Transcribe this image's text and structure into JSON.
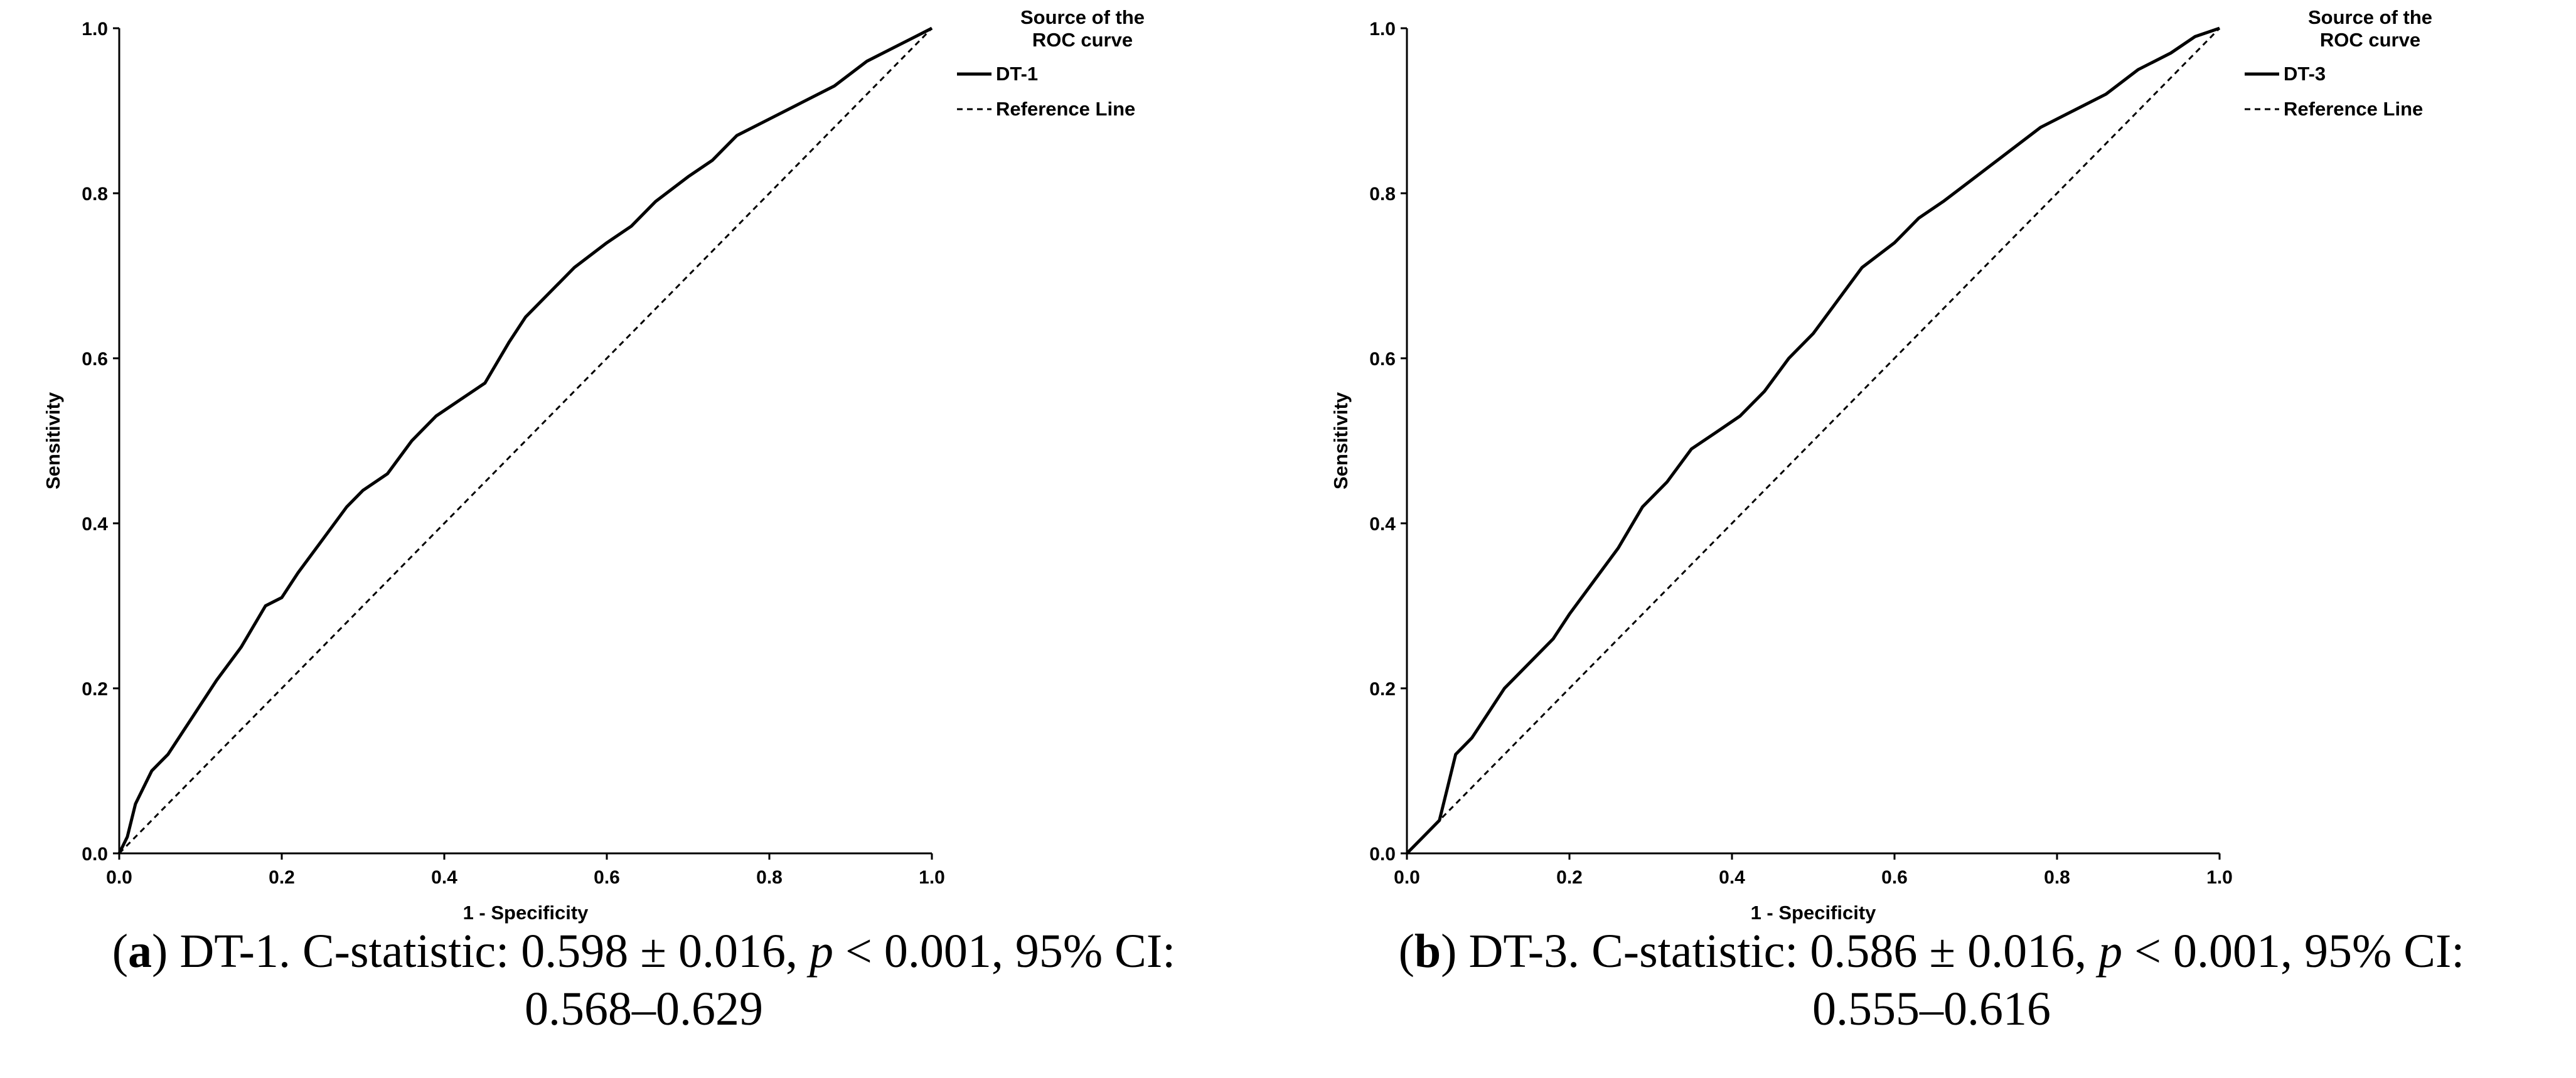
{
  "chart_data": [
    {
      "type": "line",
      "panel": "a",
      "title": "",
      "xlabel": "1 - Specificity",
      "ylabel": "Sensitivity",
      "xlim": [
        0,
        1
      ],
      "ylim": [
        0,
        1
      ],
      "xticks": [
        "0.0",
        "0.2",
        "0.4",
        "0.6",
        "0.8",
        "1.0"
      ],
      "yticks": [
        "0.0",
        "0.2",
        "0.4",
        "0.6",
        "0.8",
        "1.0"
      ],
      "grid": false,
      "legend": {
        "title_line1": "Source of the",
        "title_line2": "ROC curve",
        "placement": "top-right",
        "entries": [
          {
            "name": "DT-1",
            "style": "solid"
          },
          {
            "name": "Reference Line",
            "style": "dashed"
          }
        ]
      },
      "series": [
        {
          "name": "DT-1",
          "style": "solid",
          "points": [
            [
              0,
              0
            ],
            [
              0.01,
              0.02
            ],
            [
              0.02,
              0.06
            ],
            [
              0.04,
              0.1
            ],
            [
              0.06,
              0.12
            ],
            [
              0.08,
              0.15
            ],
            [
              0.1,
              0.18
            ],
            [
              0.12,
              0.21
            ],
            [
              0.15,
              0.25
            ],
            [
              0.18,
              0.3
            ],
            [
              0.2,
              0.31
            ],
            [
              0.22,
              0.34
            ],
            [
              0.25,
              0.38
            ],
            [
              0.28,
              0.42
            ],
            [
              0.3,
              0.44
            ],
            [
              0.33,
              0.46
            ],
            [
              0.36,
              0.5
            ],
            [
              0.39,
              0.53
            ],
            [
              0.42,
              0.55
            ],
            [
              0.45,
              0.57
            ],
            [
              0.48,
              0.62
            ],
            [
              0.5,
              0.65
            ],
            [
              0.53,
              0.68
            ],
            [
              0.56,
              0.71
            ],
            [
              0.6,
              0.74
            ],
            [
              0.63,
              0.76
            ],
            [
              0.66,
              0.79
            ],
            [
              0.7,
              0.82
            ],
            [
              0.73,
              0.84
            ],
            [
              0.76,
              0.87
            ],
            [
              0.8,
              0.89
            ],
            [
              0.84,
              0.91
            ],
            [
              0.88,
              0.93
            ],
            [
              0.92,
              0.96
            ],
            [
              0.96,
              0.98
            ],
            [
              0.98,
              0.99
            ],
            [
              1,
              1
            ]
          ]
        },
        {
          "name": "Reference Line",
          "style": "dashed",
          "points": [
            [
              0,
              0
            ],
            [
              1,
              1
            ]
          ]
        }
      ],
      "annotations": {
        "c_statistic": 0.598,
        "std_error": 0.016,
        "p_value": "< 0.001",
        "ci95": [
          0.568,
          0.629
        ]
      }
    },
    {
      "type": "line",
      "panel": "b",
      "title": "",
      "xlabel": "1 - Specificity",
      "ylabel": "Sensitivity",
      "xlim": [
        0,
        1
      ],
      "ylim": [
        0,
        1
      ],
      "xticks": [
        "0.0",
        "0.2",
        "0.4",
        "0.6",
        "0.8",
        "1.0"
      ],
      "yticks": [
        "0.0",
        "0.2",
        "0.4",
        "0.6",
        "0.8",
        "1.0"
      ],
      "grid": false,
      "legend": {
        "title_line1": "Source of the",
        "title_line2": "ROC curve",
        "placement": "top-right",
        "entries": [
          {
            "name": "DT-3",
            "style": "solid"
          },
          {
            "name": "Reference Line",
            "style": "dashed"
          }
        ]
      },
      "series": [
        {
          "name": "DT-3",
          "style": "solid",
          "points": [
            [
              0,
              0
            ],
            [
              0.02,
              0.02
            ],
            [
              0.04,
              0.04
            ],
            [
              0.05,
              0.08
            ],
            [
              0.06,
              0.12
            ],
            [
              0.08,
              0.14
            ],
            [
              0.1,
              0.17
            ],
            [
              0.12,
              0.2
            ],
            [
              0.15,
              0.23
            ],
            [
              0.18,
              0.26
            ],
            [
              0.2,
              0.29
            ],
            [
              0.23,
              0.33
            ],
            [
              0.26,
              0.37
            ],
            [
              0.29,
              0.42
            ],
            [
              0.32,
              0.45
            ],
            [
              0.35,
              0.49
            ],
            [
              0.38,
              0.51
            ],
            [
              0.41,
              0.53
            ],
            [
              0.44,
              0.56
            ],
            [
              0.47,
              0.6
            ],
            [
              0.5,
              0.63
            ],
            [
              0.53,
              0.67
            ],
            [
              0.56,
              0.71
            ],
            [
              0.6,
              0.74
            ],
            [
              0.63,
              0.77
            ],
            [
              0.66,
              0.79
            ],
            [
              0.7,
              0.82
            ],
            [
              0.74,
              0.85
            ],
            [
              0.78,
              0.88
            ],
            [
              0.82,
              0.9
            ],
            [
              0.86,
              0.92
            ],
            [
              0.9,
              0.95
            ],
            [
              0.94,
              0.97
            ],
            [
              0.97,
              0.99
            ],
            [
              1,
              1
            ]
          ]
        },
        {
          "name": "Reference Line",
          "style": "dashed",
          "points": [
            [
              0,
              0
            ],
            [
              1,
              1
            ]
          ]
        }
      ],
      "annotations": {
        "c_statistic": 0.586,
        "std_error": 0.016,
        "p_value": "< 0.001",
        "ci95": [
          0.555,
          0.616
        ]
      }
    }
  ],
  "captions": [
    {
      "label": "a",
      "open": "(",
      "close": ")",
      "line1_pre": " DT-1. C-statistic: 0.598 ± 0.016, ",
      "p": "p",
      "line1_post": " < 0.001, 95% CI:",
      "line2": "0.568–0.629"
    },
    {
      "label": "b",
      "open": "(",
      "close": ")",
      "line1_pre": " DT-3. C-statistic: 0.586 ± 0.016, ",
      "p": "p",
      "line1_post": " < 0.001, 95% CI:",
      "line2": "0.555–0.616"
    }
  ]
}
